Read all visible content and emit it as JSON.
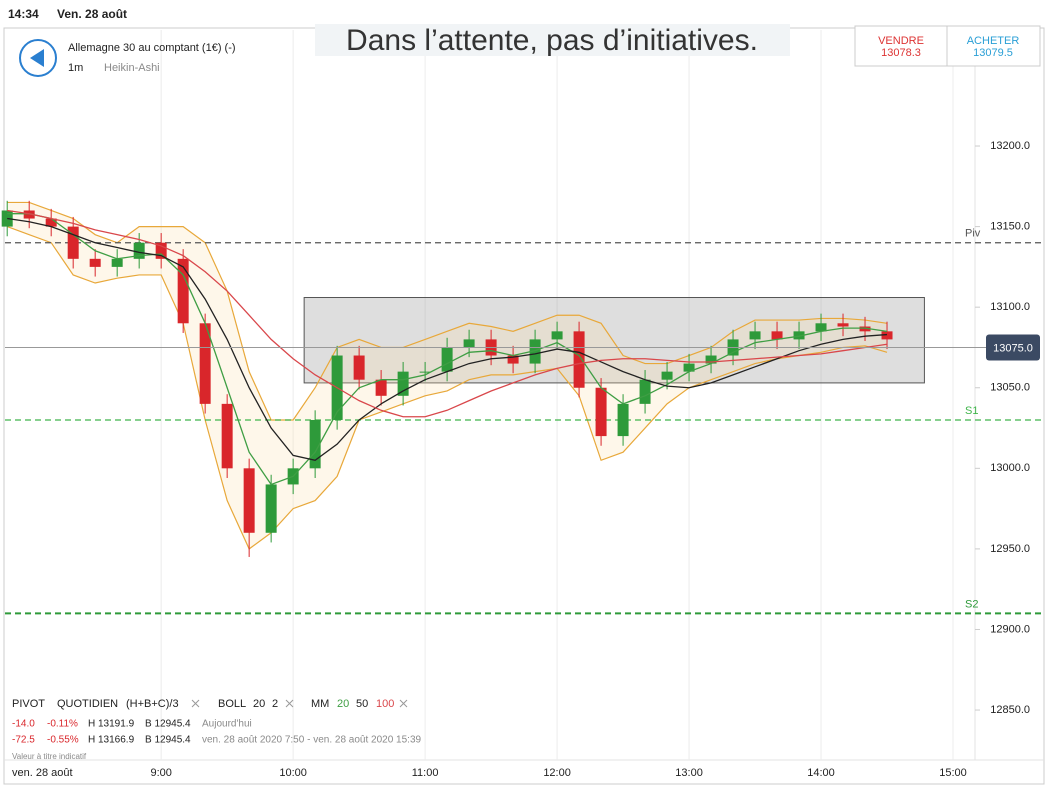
{
  "status_bar": {
    "time": "14:34",
    "date": "Ven. 28 août"
  },
  "header": {
    "instrument": "Allemagne 30 au comptant (1€) (-)",
    "timeframe": "1m",
    "chart_style": "Heikin-Ashi",
    "banner": "Dans l’attente, pas d’initiatives.",
    "sell": {
      "label": "VENDRE",
      "price": 13078.3
    },
    "buy": {
      "label": "ACHETER",
      "price": 13079.5
    }
  },
  "chart_data": {
    "type": "candlestick",
    "x": [
      "7:50",
      "8:00",
      "8:10",
      "8:20",
      "8:30",
      "8:40",
      "8:50",
      "9:00",
      "9:10",
      "9:20",
      "9:30",
      "9:40",
      "9:50",
      "10:00",
      "10:10",
      "10:20",
      "10:30",
      "10:40",
      "10:50",
      "11:00",
      "11:10",
      "11:20",
      "11:30",
      "11:40",
      "11:50",
      "12:00",
      "12:10",
      "12:20",
      "12:30",
      "12:40",
      "12:50",
      "13:00",
      "13:10",
      "13:20",
      "13:30",
      "13:40",
      "13:50",
      "14:00",
      "14:10",
      "14:20",
      "14:30"
    ],
    "open": [
      13150,
      13160,
      13155,
      13150,
      13130,
      13125,
      13130,
      13140,
      13130,
      13090,
      13040,
      13000,
      12960,
      12990,
      13000,
      13030,
      13070,
      13055,
      13045,
      13060,
      13060,
      13075,
      13080,
      13070,
      13065,
      13080,
      13085,
      13050,
      13020,
      13040,
      13055,
      13060,
      13065,
      13070,
      13080,
      13085,
      13080,
      13085,
      13090,
      13088,
      13085
    ],
    "high": [
      13166,
      13166,
      13161,
      13156,
      13136,
      13136,
      13146,
      13146,
      13136,
      13096,
      13046,
      13006,
      12996,
      13006,
      13036,
      13076,
      13076,
      13061,
      13066,
      13066,
      13081,
      13086,
      13086,
      13076,
      13086,
      13091,
      13091,
      13056,
      13046,
      13061,
      13066,
      13071,
      13076,
      13086,
      13091,
      13091,
      13091,
      13096,
      13096,
      13094,
      13091
    ],
    "low": [
      13144,
      13149,
      13144,
      13124,
      13119,
      13119,
      13124,
      13124,
      13084,
      13034,
      12994,
      12945,
      12954,
      12984,
      12994,
      13024,
      13049,
      13039,
      13039,
      13054,
      13054,
      13069,
      13064,
      13059,
      13059,
      13074,
      13044,
      13014,
      13014,
      13034,
      13049,
      13054,
      13059,
      13064,
      13074,
      13074,
      13074,
      13079,
      13082,
      13079,
      13074
    ],
    "close": [
      13160,
      13155,
      13150,
      13130,
      13125,
      13130,
      13140,
      13130,
      13090,
      13040,
      13000,
      12960,
      12990,
      13000,
      13030,
      13070,
      13055,
      13045,
      13060,
      13060,
      13075,
      13080,
      13070,
      13065,
      13080,
      13085,
      13050,
      13020,
      13040,
      13055,
      13060,
      13065,
      13070,
      13080,
      13085,
      13080,
      13085,
      13090,
      13088,
      13085,
      13080
    ],
    "up_color": "#2e9a3a",
    "down_color": "#d9262b",
    "ma_label": "MM",
    "series": [
      {
        "name": "20",
        "color": "#3f9e44",
        "values": [
          13158,
          13158,
          13155,
          13145,
          13135,
          13130,
          13132,
          13133,
          13120,
          13090,
          13050,
          13010,
          12990,
          12995,
          13010,
          13035,
          13050,
          13055,
          13055,
          13058,
          13065,
          13072,
          13073,
          13070,
          13073,
          13078,
          13070,
          13050,
          13040,
          13045,
          13052,
          13060,
          13065,
          13072,
          13078,
          13080,
          13082,
          13085,
          13087,
          13087,
          13085
        ]
      },
      {
        "name": "50",
        "color": "#222222",
        "values": [
          13155,
          13153,
          13150,
          13145,
          13140,
          13137,
          13134,
          13132,
          13125,
          13105,
          13080,
          13050,
          13025,
          13008,
          13005,
          13015,
          13030,
          13040,
          13048,
          13055,
          13060,
          13065,
          13068,
          13069,
          13071,
          13074,
          13072,
          13066,
          13060,
          13055,
          13051,
          13050,
          13053,
          13058,
          13063,
          13068,
          13073,
          13077,
          13080,
          13082,
          13083
        ]
      },
      {
        "name": "100",
        "color": "#d9474b",
        "values": [
          13160,
          13158,
          13155,
          13152,
          13148,
          13145,
          13142,
          13138,
          13132,
          13122,
          13110,
          13095,
          13080,
          13068,
          13058,
          13050,
          13042,
          13036,
          13032,
          13032,
          13036,
          13042,
          13048,
          13053,
          13058,
          13062,
          13065,
          13067,
          13068,
          13068,
          13067,
          13066,
          13066,
          13067,
          13068,
          13069,
          13070,
          13071,
          13073,
          13075,
          13077
        ]
      }
    ],
    "bollinger": {
      "name": "BOLL",
      "period": 20,
      "deviation": 2,
      "color": "#e8a83a",
      "upper": [
        13165,
        13165,
        13160,
        13155,
        13145,
        13140,
        13150,
        13150,
        13150,
        13140,
        13110,
        13060,
        13030,
        13030,
        13050,
        13075,
        13080,
        13075,
        13075,
        13080,
        13085,
        13090,
        13088,
        13085,
        13090,
        13095,
        13095,
        13090,
        13070,
        13065,
        13065,
        13070,
        13075,
        13085,
        13092,
        13092,
        13092,
        13093,
        13093,
        13092,
        13090
      ],
      "lower": [
        13150,
        13145,
        13140,
        13120,
        13115,
        13118,
        13120,
        13120,
        13090,
        13030,
        12980,
        12950,
        12960,
        12975,
        12980,
        12995,
        13030,
        13035,
        13040,
        13045,
        13048,
        13055,
        13058,
        13058,
        13060,
        13062,
        13045,
        13005,
        13010,
        13025,
        13040,
        13050,
        13055,
        13060,
        13065,
        13068,
        13070,
        13072,
        13075,
        13076,
        13072
      ]
    },
    "pivot": {
      "name": "PIVOT",
      "period": "QUOTIDIEN",
      "formula": "(H+B+C)/3",
      "levels": [
        {
          "label": "Piv",
          "value": 13140,
          "color": "#555555"
        },
        {
          "label": "S1",
          "value": 13030,
          "color": "#3fb54a"
        },
        {
          "label": "S2",
          "value": 12910,
          "color": "#2e9a3a"
        }
      ]
    },
    "zone": {
      "x": [
        "10:05",
        "14:47"
      ],
      "y": [
        13053,
        13106
      ]
    },
    "current_price": {
      "value": 13075,
      "label": "13075.0"
    },
    "xlim": [
      "7:49",
      "15:10"
    ],
    "ylim": [
      12819,
      13272
    ],
    "xticks": [
      "9:00",
      "10:00",
      "11:00",
      "12:00",
      "13:00",
      "14:00",
      "15:00"
    ],
    "yticks": [
      {
        "value": 13200,
        "label": "13200.0"
      },
      {
        "value": 13150,
        "label": "13150.0"
      },
      {
        "value": 13100,
        "label": "13100.0"
      },
      {
        "value": 13050,
        "label": "13050.0"
      },
      {
        "value": 13000,
        "label": "13000.0"
      },
      {
        "value": 12950,
        "label": "12950.0"
      },
      {
        "value": 12900,
        "label": "12900.0"
      },
      {
        "value": 12850,
        "label": "12850.0"
      }
    ],
    "grid": true
  },
  "stats": [
    {
      "change": "-14.0",
      "change_pct": "-0.11%",
      "high": "H 13191.9",
      "low": "B 12945.4",
      "range": "Aujourd'hui"
    },
    {
      "change": "-72.5",
      "change_pct": "-0.55%",
      "high": "H 13166.9",
      "low": "B 12945.4",
      "range": "ven. 28 août 2020 7:50 - ven. 28 août 2020 15:39"
    }
  ],
  "footer": {
    "note": "Valeur à titre indicatif",
    "date": "ven. 28 août"
  }
}
